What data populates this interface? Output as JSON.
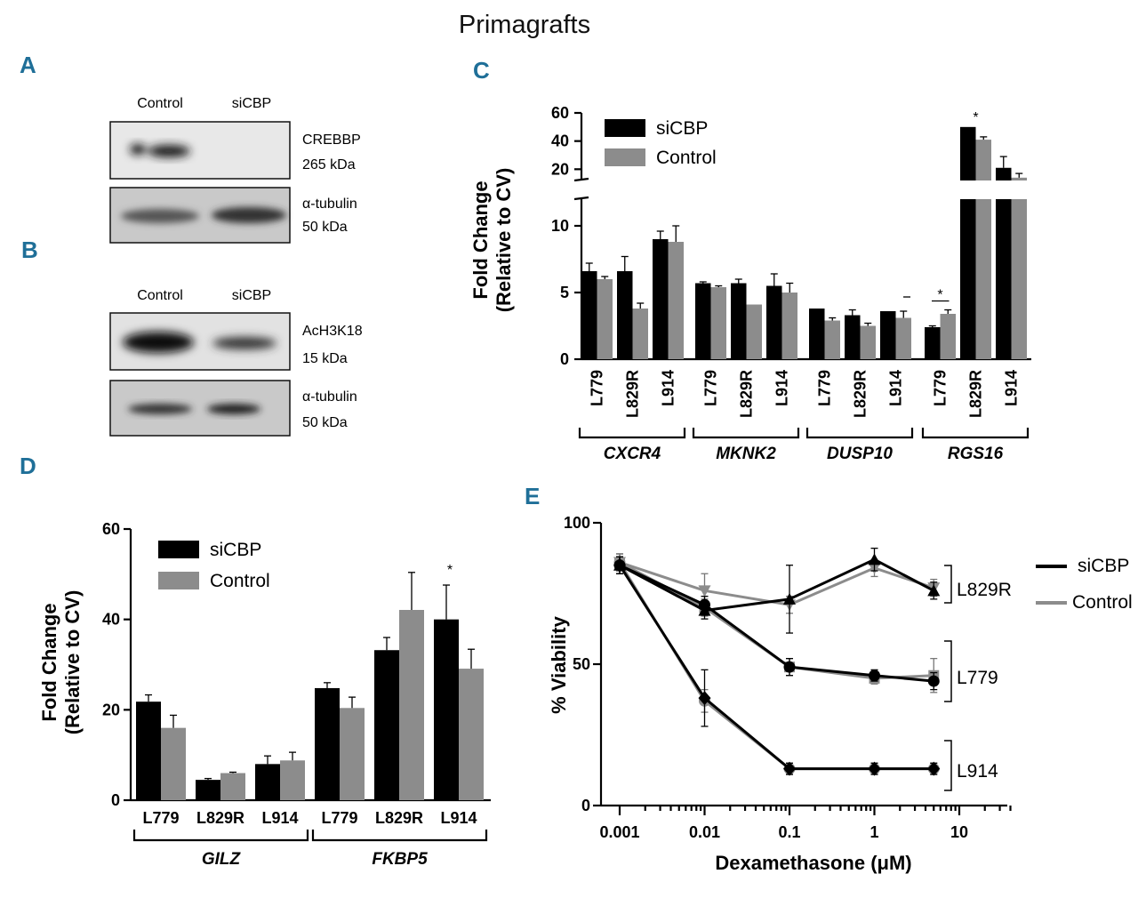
{
  "title": "Primagrafts",
  "colors": {
    "siCBP": "#000000",
    "Control": "#8c8c8c",
    "panel_label": "#1f6f98"
  },
  "panels": {
    "A": {
      "label": "A",
      "lanes": [
        "Control",
        "siCBP"
      ],
      "blots": [
        {
          "protein": "CREBBP",
          "size": "265 kDa"
        },
        {
          "protein": "α-tubulin",
          "size": "50 kDa"
        }
      ]
    },
    "B": {
      "label": "B",
      "lanes": [
        "Control",
        "siCBP"
      ],
      "blots": [
        {
          "protein": "AcH3K18",
          "size": "15 kDa"
        },
        {
          "protein": "α-tubulin",
          "size": "50 kDa"
        }
      ]
    },
    "C": {
      "label": "C"
    },
    "D": {
      "label": "D"
    },
    "E": {
      "label": "E"
    }
  },
  "chart_data": [
    {
      "id": "C",
      "type": "bar",
      "ylabel": "Fold Change (Relative to CV)",
      "ylabel_lines": [
        "Fold Change",
        "(Relative to CV)"
      ],
      "legend": [
        "siCBP",
        "Control"
      ],
      "broken_axis": true,
      "lower_yticks": [
        0,
        5,
        10
      ],
      "lower_ylim": [
        0,
        12
      ],
      "upper_yticks": [
        20,
        40,
        60
      ],
      "upper_ylim": [
        12,
        60
      ],
      "groups": [
        {
          "gene": "CXCR4",
          "lines": [
            "L779",
            "L829R",
            "L914"
          ],
          "siCBP": [
            6.6,
            6.6,
            9.0
          ],
          "siCBP_err": [
            0.6,
            1.1,
            0.6
          ],
          "Control": [
            6.0,
            3.8,
            8.8
          ],
          "Control_err": [
            0.2,
            0.4,
            1.2
          ],
          "stars": [
            "",
            "",
            ""
          ]
        },
        {
          "gene": "MKNK2",
          "lines": [
            "L779",
            "L829R",
            "L914"
          ],
          "siCBP": [
            5.7,
            5.7,
            5.5
          ],
          "siCBP_err": [
            0.1,
            0.3,
            0.9
          ],
          "Control": [
            5.4,
            4.1,
            5.0
          ],
          "Control_err": [
            0.1,
            0.0,
            0.7
          ],
          "stars": [
            "",
            "",
            ""
          ]
        },
        {
          "gene": "DUSP10",
          "lines": [
            "L779",
            "L829R",
            "L914"
          ],
          "siCBP": [
            3.8,
            3.3,
            3.6
          ],
          "siCBP_err": [
            0.0,
            0.4,
            0.0
          ],
          "Control": [
            2.9,
            2.5,
            3.1
          ],
          "Control_err": [
            0.2,
            0.2,
            0.5
          ],
          "stars": [
            "",
            "",
            ""
          ]
        },
        {
          "gene": "RGS16",
          "lines": [
            "L779",
            "L829R",
            "L914"
          ],
          "siCBP": [
            2.4,
            50,
            21
          ],
          "siCBP_err": [
            0.1,
            0,
            8
          ],
          "Control": [
            3.4,
            41,
            14
          ],
          "Control_err": [
            0.3,
            2,
            3
          ],
          "stars": [
            "*",
            "*",
            ""
          ]
        }
      ]
    },
    {
      "id": "D",
      "type": "bar",
      "ylabel": "Fold Change (Relative to CV)",
      "ylabel_lines": [
        "Fold Change",
        "(Relative to CV)"
      ],
      "legend": [
        "siCBP",
        "Control"
      ],
      "ylim": [
        0,
        60
      ],
      "yticks": [
        0,
        20,
        40,
        60
      ],
      "groups": [
        {
          "gene": "GILZ",
          "lines": [
            "L779",
            "L829R",
            "L914"
          ],
          "siCBP": [
            21.8,
            4.5,
            8.0
          ],
          "siCBP_err": [
            1.5,
            0.3,
            1.8
          ],
          "Control": [
            16.0,
            6.0,
            8.8
          ],
          "Control_err": [
            2.8,
            0.2,
            1.8
          ],
          "stars": [
            "",
            "",
            ""
          ]
        },
        {
          "gene": "FKBP5",
          "lines": [
            "L779",
            "L829R",
            "L914"
          ],
          "siCBP": [
            24.8,
            33.2,
            40.0
          ],
          "siCBP_err": [
            1.2,
            2.8,
            7.6
          ],
          "Control": [
            20.4,
            42.1,
            29.1
          ],
          "Control_err": [
            2.4,
            8.3,
            4.3
          ],
          "stars": [
            "",
            "",
            "*"
          ]
        }
      ]
    },
    {
      "id": "E",
      "type": "line",
      "xscale": "log",
      "xlabel": "Dexamethasone (μM)",
      "ylabel": "% Viability",
      "xlim": [
        0.001,
        40
      ],
      "ylim": [
        0,
        100
      ],
      "xticks": [
        "0.001",
        "0.01",
        "0.1",
        "1",
        "10"
      ],
      "yticks": [
        0,
        50,
        100
      ],
      "legend": [
        "siCBP",
        "Control"
      ],
      "x": [
        0.001,
        0.01,
        0.1,
        1,
        5
      ],
      "series": [
        {
          "name": "siCBP",
          "line": "L829R",
          "marker": "triangle",
          "y": [
            85,
            69,
            73,
            87,
            76
          ],
          "err": [
            3,
            3,
            12,
            4,
            3
          ]
        },
        {
          "name": "Control",
          "line": "L829R",
          "marker": "triangle-down",
          "y": [
            86,
            76,
            71,
            84,
            77
          ],
          "err": [
            3,
            6,
            3,
            3,
            3
          ]
        },
        {
          "name": "siCBP",
          "line": "L779",
          "marker": "circle",
          "y": [
            85,
            71,
            49,
            46,
            44
          ],
          "err": [
            3,
            3,
            3,
            2,
            3
          ]
        },
        {
          "name": "Control",
          "line": "L779",
          "marker": "square",
          "y": [
            86,
            70,
            49,
            45,
            46
          ],
          "err": [
            3,
            3,
            3,
            2,
            6
          ]
        },
        {
          "name": "siCBP",
          "line": "L914",
          "marker": "diamond",
          "y": [
            85,
            38,
            13,
            13,
            13
          ],
          "err": [
            3,
            10,
            2,
            2,
            2
          ]
        },
        {
          "name": "Control",
          "line": "L914",
          "marker": "circle",
          "y": [
            86,
            37,
            13,
            13,
            13
          ],
          "err": [
            3,
            4,
            2,
            2,
            2
          ]
        }
      ],
      "group_labels": [
        "L829R",
        "L779",
        "L914"
      ]
    }
  ]
}
